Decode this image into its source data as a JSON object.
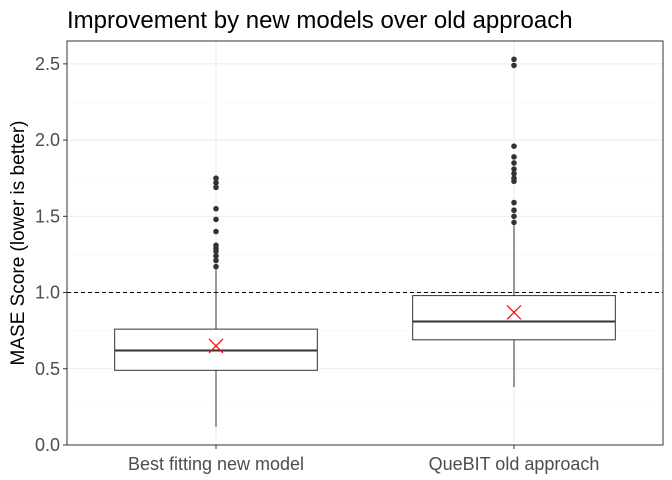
{
  "chart_data": {
    "type": "boxplot",
    "title": "Improvement by new models over old approach",
    "xlabel": "",
    "ylabel": "MASE Score (lower is better)",
    "ylim": [
      0,
      2.65
    ],
    "yticks": [
      "0.0",
      "0.5",
      "1.0",
      "1.5",
      "2.0",
      "2.5"
    ],
    "grid": true,
    "reference_line": {
      "y": 1.0,
      "style": "dashed"
    },
    "categories": [
      "Best fitting new model",
      "QueBIT old approach"
    ],
    "boxes": [
      {
        "category": "Best fitting new model",
        "lower_whisker": 0.12,
        "q1": 0.49,
        "median": 0.62,
        "q3": 0.76,
        "upper_whisker": 1.15,
        "mean": 0.65,
        "outliers": [
          1.17,
          1.21,
          1.24,
          1.27,
          1.29,
          1.31,
          1.4,
          1.48,
          1.55,
          1.69,
          1.72,
          1.75
        ]
      },
      {
        "category": "QueBIT old approach",
        "lower_whisker": 0.38,
        "q1": 0.69,
        "median": 0.81,
        "q3": 0.98,
        "upper_whisker": 1.44,
        "mean": 0.87,
        "outliers": [
          1.46,
          1.5,
          1.54,
          1.59,
          1.73,
          1.75,
          1.78,
          1.81,
          1.85,
          1.89,
          1.96,
          2.49,
          2.53
        ]
      }
    ],
    "colors": {
      "box_line": "#333333",
      "mean_marker": "#ff0000",
      "reference_line": "#000000"
    }
  }
}
